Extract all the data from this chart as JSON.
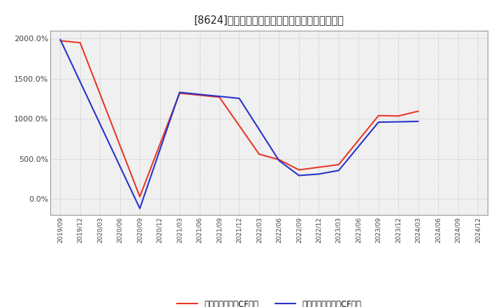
{
  "title": "[8624]　有利子負債キャッシュフロー比率の推移",
  "x_labels": [
    "2019/09",
    "2019/12",
    "2020/03",
    "2020/06",
    "2020/09",
    "2020/12",
    "2021/03",
    "2021/06",
    "2021/09",
    "2021/12",
    "2022/03",
    "2022/06",
    "2022/09",
    "2022/12",
    "2023/03",
    "2023/06",
    "2023/09",
    "2023/12",
    "2024/03",
    "2024/06",
    "2024/09",
    "2024/12"
  ],
  "red_color": "#e83828",
  "blue_color": "#2832c8",
  "background_color": "#ffffff",
  "plot_bg_color": "#f0f0f0",
  "grid_color": "#bbbbbb",
  "legend_red": "有利子負債営業CF比率",
  "legend_blue": "有利子負債フリーCF比率",
  "ylim": [
    -200,
    2100
  ],
  "yticks": [
    0,
    500,
    1000,
    1500,
    2000
  ],
  "red_data": {
    "2019/09": 1975,
    "2019/12": 1950,
    "2020/09": 28,
    "2021/03": 1320,
    "2021/06": 1295,
    "2021/09": 1270,
    "2022/03": 558,
    "2022/06": 490,
    "2022/09": 362,
    "2023/03": 428,
    "2023/09": 1040,
    "2023/12": 1035,
    "2024/03": 1095
  },
  "blue_data": {
    "2019/09": 1990,
    "2020/09": -120,
    "2021/03": 1330,
    "2021/06": 1305,
    "2021/09": 1280,
    "2021/12": 1255,
    "2022/06": 478,
    "2022/09": 292,
    "2022/12": 310,
    "2023/03": 355,
    "2023/09": 958,
    "2023/12": 962,
    "2024/03": 968
  }
}
